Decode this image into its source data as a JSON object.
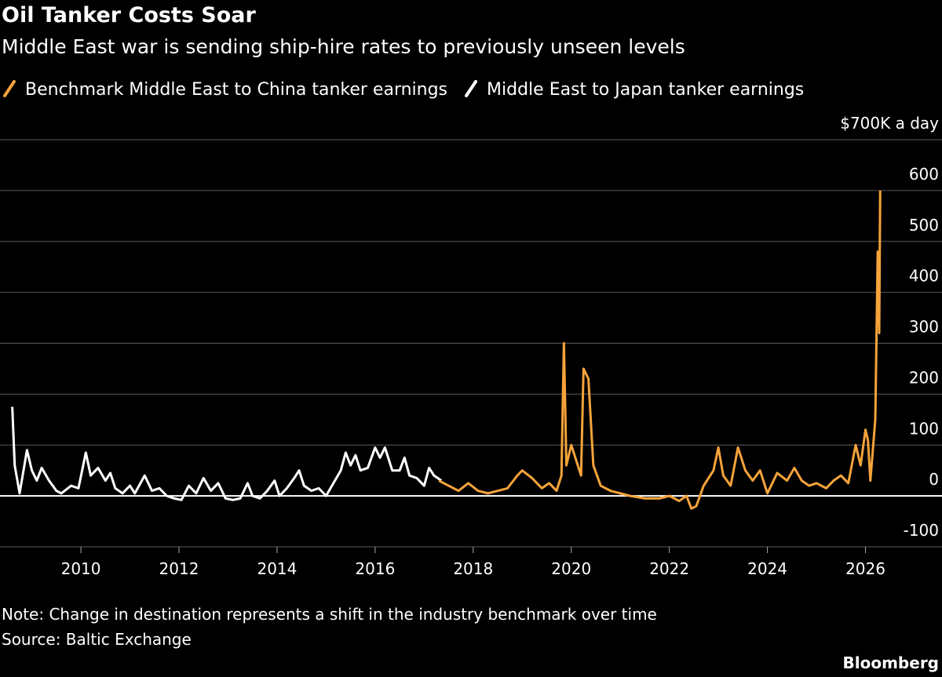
{
  "chart_data": {
    "type": "line",
    "title": "Oil Tanker Costs Soar",
    "subtitle": "Middle East war is sending ship-hire rates to previously unseen levels",
    "note": "Note: Change in destination represents a shift in the industry benchmark over time",
    "source": "Source: Baltic Exchange",
    "brand": "Bloomberg",
    "xlim": [
      2008.35,
      2026.6
    ],
    "ylim": [
      -100,
      700
    ],
    "xticks": [
      2010,
      2012,
      2014,
      2016,
      2018,
      2020,
      2022,
      2024,
      2026
    ],
    "yticks": [
      -100,
      0,
      100,
      200,
      300,
      400,
      500,
      600,
      {
        "value": 700,
        "label": "$700K a day"
      }
    ],
    "grid": true,
    "series": [
      {
        "name": "Benchmark Middle East to China tanker earnings",
        "color": "#f5a33a",
        "x": [
          2017.3,
          2017.5,
          2017.7,
          2017.9,
          2018.1,
          2018.3,
          2018.5,
          2018.7,
          2018.9,
          2019.0,
          2019.2,
          2019.4,
          2019.55,
          2019.7,
          2019.8,
          2019.85,
          2019.9,
          2020.0,
          2020.1,
          2020.2,
          2020.25,
          2020.35,
          2020.45,
          2020.6,
          2020.8,
          2021.0,
          2021.2,
          2021.5,
          2021.8,
          2022.0,
          2022.2,
          2022.35,
          2022.45,
          2022.55,
          2022.7,
          2022.9,
          2023.0,
          2023.1,
          2023.25,
          2023.4,
          2023.55,
          2023.7,
          2023.85,
          2024.0,
          2024.2,
          2024.4,
          2024.55,
          2024.7,
          2024.85,
          2025.0,
          2025.2,
          2025.35,
          2025.5,
          2025.65,
          2025.8,
          2025.9,
          2026.0,
          2026.05,
          2026.1,
          2026.15,
          2026.2,
          2026.25,
          2026.28,
          2026.3
        ],
        "values": [
          30,
          20,
          10,
          25,
          10,
          5,
          10,
          15,
          40,
          50,
          35,
          15,
          25,
          10,
          40,
          300,
          60,
          100,
          70,
          40,
          250,
          230,
          60,
          20,
          10,
          5,
          0,
          -5,
          -5,
          0,
          -10,
          0,
          -25,
          -20,
          20,
          50,
          95,
          40,
          20,
          95,
          50,
          30,
          50,
          5,
          45,
          30,
          55,
          30,
          20,
          25,
          15,
          30,
          40,
          25,
          100,
          60,
          130,
          110,
          30,
          90,
          150,
          480,
          320,
          600
        ]
      },
      {
        "name": "Middle East to Japan tanker earnings",
        "color": "#ffffff",
        "x": [
          2008.6,
          2008.65,
          2008.75,
          2008.9,
          2009.0,
          2009.1,
          2009.2,
          2009.35,
          2009.5,
          2009.6,
          2009.8,
          2009.95,
          2010.1,
          2010.2,
          2010.35,
          2010.5,
          2010.6,
          2010.7,
          2010.85,
          2011.0,
          2011.1,
          2011.3,
          2011.45,
          2011.6,
          2011.75,
          2011.9,
          2012.05,
          2012.2,
          2012.35,
          2012.5,
          2012.65,
          2012.8,
          2012.95,
          2013.1,
          2013.25,
          2013.4,
          2013.5,
          2013.65,
          2013.8,
          2013.95,
          2014.05,
          2014.2,
          2014.35,
          2014.45,
          2014.55,
          2014.7,
          2014.85,
          2015.0,
          2015.15,
          2015.3,
          2015.4,
          2015.5,
          2015.6,
          2015.7,
          2015.85,
          2016.0,
          2016.1,
          2016.2,
          2016.35,
          2016.5,
          2016.6,
          2016.7,
          2016.85,
          2017.0,
          2017.1,
          2017.2,
          2017.35
        ],
        "values": [
          175,
          60,
          5,
          90,
          50,
          30,
          55,
          30,
          10,
          5,
          20,
          15,
          85,
          40,
          55,
          30,
          45,
          15,
          5,
          20,
          5,
          40,
          10,
          15,
          0,
          -5,
          -8,
          20,
          5,
          35,
          10,
          25,
          -5,
          -8,
          -5,
          25,
          0,
          -5,
          10,
          30,
          0,
          15,
          35,
          50,
          20,
          10,
          15,
          0,
          25,
          50,
          85,
          60,
          80,
          50,
          55,
          95,
          75,
          95,
          50,
          50,
          75,
          40,
          35,
          20,
          55,
          40,
          30
        ]
      }
    ]
  }
}
